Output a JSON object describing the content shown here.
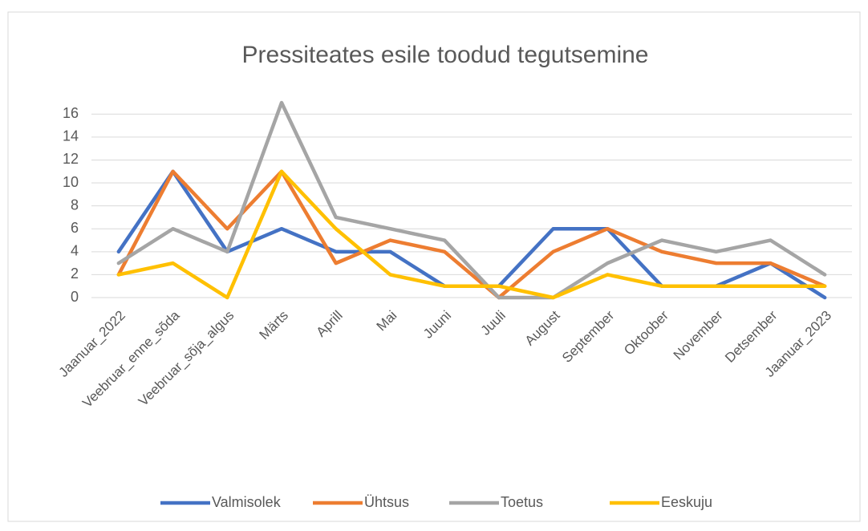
{
  "chart_data": {
    "type": "line",
    "title": "Pressiteates esile toodud tegutsemine",
    "categories": [
      "Jaanuar_2022",
      "Veebruar_enne_sõda",
      "Veebruar_sõja_algus",
      "Märts",
      "Aprill",
      "Mai",
      "Juuni",
      "Juuli",
      "August",
      "September",
      "Oktoober",
      "November",
      "Detsember",
      "Jaanuar_2023"
    ],
    "series": [
      {
        "name": "Valmisolek",
        "color": "#4472c4",
        "values": [
          4,
          11,
          4,
          6,
          4,
          4,
          1,
          1,
          6,
          6,
          1,
          1,
          3,
          0
        ]
      },
      {
        "name": "Ühtsus",
        "color": "#ed7d31",
        "values": [
          2,
          11,
          6,
          11,
          3,
          5,
          4,
          0,
          4,
          6,
          4,
          3,
          3,
          1
        ]
      },
      {
        "name": "Toetus",
        "color": "#a5a5a5",
        "values": [
          3,
          6,
          4,
          17,
          7,
          6,
          5,
          0,
          0,
          3,
          5,
          4,
          5,
          2
        ]
      },
      {
        "name": "Eeskuju",
        "color": "#ffc000",
        "values": [
          2,
          3,
          0,
          11,
          6,
          2,
          1,
          1,
          0,
          2,
          1,
          1,
          1,
          1
        ]
      }
    ],
    "ylim": [
      0,
      17
    ],
    "yticks": [
      0,
      2,
      4,
      6,
      8,
      10,
      12,
      14,
      16
    ],
    "grid": true,
    "legend": "bottom"
  }
}
